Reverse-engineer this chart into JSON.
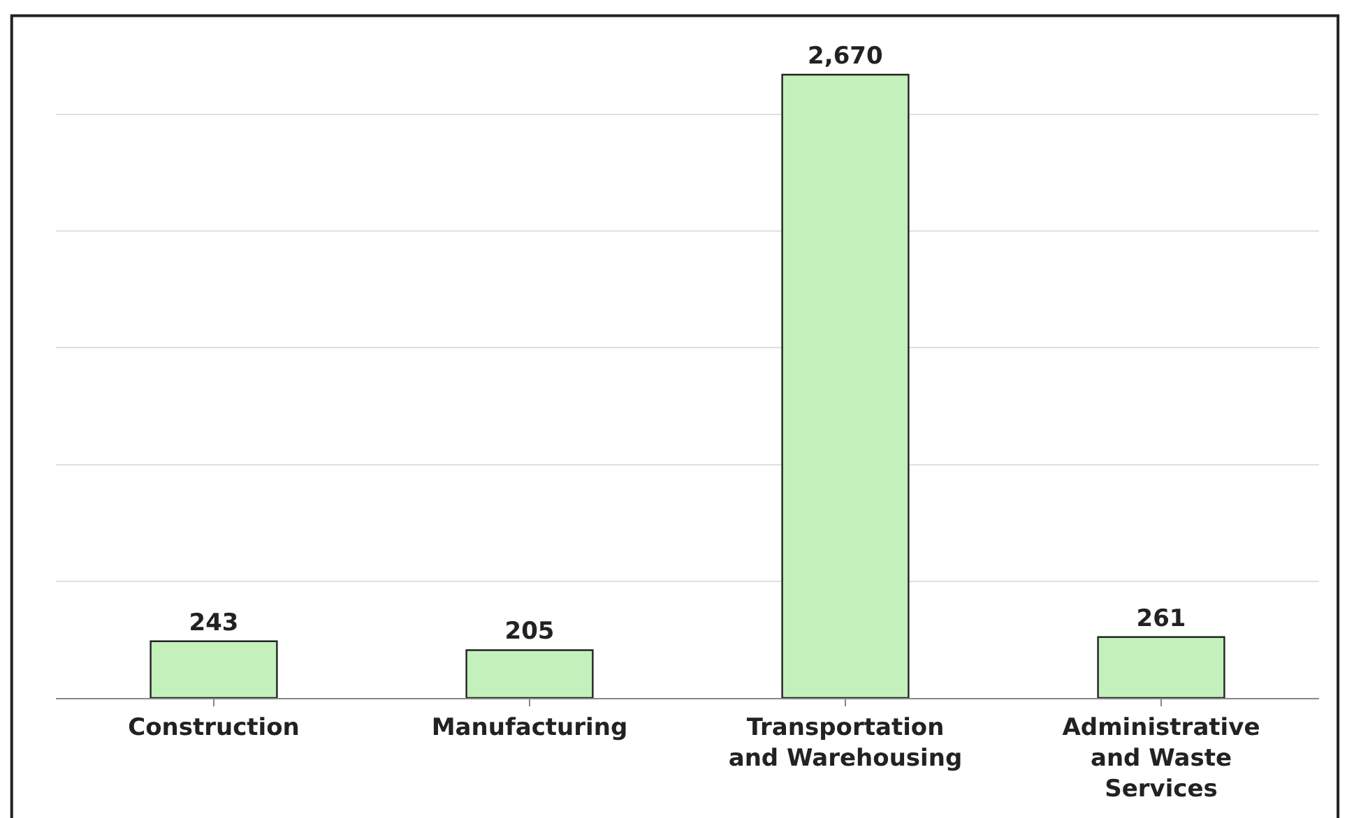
{
  "chart_data": {
    "type": "bar",
    "categories": [
      "Construction",
      "Manufacturing",
      "Transportation and Warehousing",
      "Administrative and Waste Services"
    ],
    "values": [
      243,
      205,
      2670,
      261
    ],
    "color": "#c4f0bc",
    "value_labels": [
      "243",
      "205",
      "2,670",
      "261"
    ],
    "grid": "y",
    "tick_labels": "x"
  }
}
